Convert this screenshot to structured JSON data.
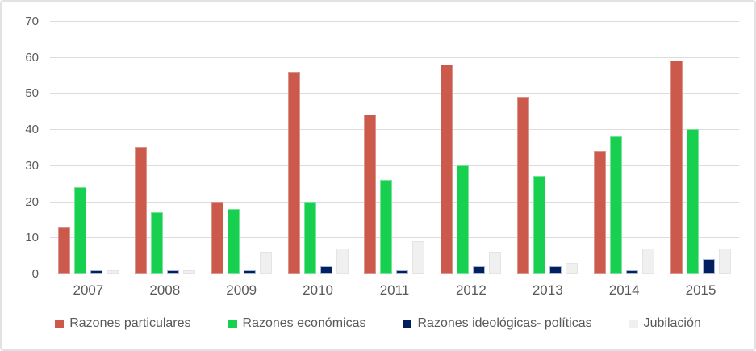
{
  "chart_data": {
    "type": "bar",
    "title": "",
    "xlabel": "",
    "ylabel": "",
    "categories": [
      "2007",
      "2008",
      "2009",
      "2010",
      "2011",
      "2012",
      "2013",
      "2014",
      "2015"
    ],
    "series": [
      {
        "name": "Razones particulares",
        "color": "#CB5A4C",
        "border_color": "#DB948A",
        "values": [
          13,
          35,
          20,
          56,
          44,
          58,
          49,
          34,
          59
        ]
      },
      {
        "name": "Razones económicas",
        "color": "#17D050",
        "border_color": "#77E49A",
        "values": [
          24,
          17,
          18,
          20,
          26,
          30,
          27,
          38,
          40
        ]
      },
      {
        "name": "Razones ideológicas- políticas",
        "color": "#002060",
        "border_color": "#A9B7D9",
        "values": [
          1,
          1,
          1,
          2,
          1,
          2,
          2,
          1,
          4
        ]
      },
      {
        "name": "Jubilación",
        "color": "#F0F0F0",
        "border_color": "#E4E4E4",
        "values": [
          1,
          1,
          6,
          7,
          9,
          6,
          3,
          7,
          7
        ]
      }
    ],
    "ylim": [
      0,
      70
    ],
    "yticks": [
      0,
      10,
      20,
      30,
      40,
      50,
      60,
      70
    ],
    "grid": true,
    "legend_position": "bottom",
    "colors": {
      "gridline": "#DCDCDC",
      "axis_text": "#595959",
      "frame_border": "#E2E2E2"
    }
  }
}
